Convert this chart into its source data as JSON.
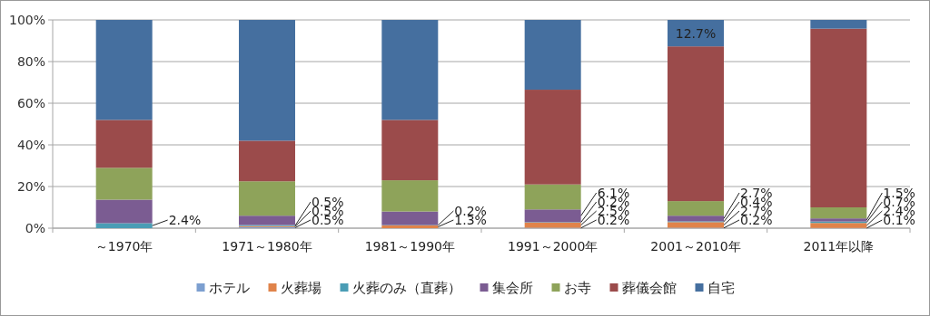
{
  "chart_data": {
    "type": "bar",
    "stacked": true,
    "categories": [
      "～1970年",
      "1971～1980年",
      "1981～1990年",
      "1991～2000年",
      "2001～2010年",
      "2011年以降"
    ],
    "ylim": [
      0,
      100
    ],
    "yticks": [
      {
        "value": 0,
        "label": "0%"
      },
      {
        "value": 20,
        "label": "20%"
      },
      {
        "value": 40,
        "label": "40%"
      },
      {
        "value": 60,
        "label": "60%"
      },
      {
        "value": 80,
        "label": "80%"
      },
      {
        "value": 100,
        "label": "100%"
      }
    ],
    "grid": "y",
    "legend": "bottom",
    "series": [
      {
        "name": "ホテル",
        "color": "#7c9fd0",
        "values": [
          0,
          0.5,
          0,
          0.2,
          0.2,
          0.1
        ],
        "value_labels": [
          null,
          "0.5%",
          null,
          "0.2%",
          "0.2%",
          "0.1%"
        ]
      },
      {
        "name": "火葬場",
        "color": "#e0834a",
        "values": [
          0,
          0.5,
          1.3,
          2.5,
          2.7,
          2.4
        ],
        "value_labels": [
          null,
          "0.5%",
          "1.3%",
          "2.5%",
          "2.7%",
          "2.4%"
        ]
      },
      {
        "name": "火葬のみ（直葬）",
        "color": "#4a9db5",
        "values": [
          2.4,
          0.5,
          0.2,
          0.2,
          0.4,
          0.7
        ],
        "value_labels": [
          "2.4%",
          "0.5%",
          "0.2%",
          "0.2%",
          "0.4%",
          "0.7%"
        ]
      },
      {
        "name": "集会所",
        "color": "#7b5c92",
        "values": [
          11.3,
          4.5,
          6.5,
          6.1,
          2.7,
          1.5
        ],
        "value_labels": [
          null,
          null,
          null,
          "6.1%",
          "2.7%",
          "1.5%"
        ]
      },
      {
        "name": "お寺",
        "color": "#8ea35a",
        "values": [
          15.3,
          16.5,
          15,
          12,
          7,
          5.3
        ]
      },
      {
        "name": "葬儀会館",
        "color": "#9b4b4b",
        "values": [
          23,
          19.5,
          29,
          45.5,
          74.3,
          85.8
        ]
      },
      {
        "name": "自宅",
        "color": "#456f9f",
        "values": [
          48,
          58,
          48,
          33.5,
          12.7,
          4.2
        ],
        "value_labels": [
          null,
          null,
          null,
          null,
          "12.7%",
          null
        ]
      }
    ]
  }
}
